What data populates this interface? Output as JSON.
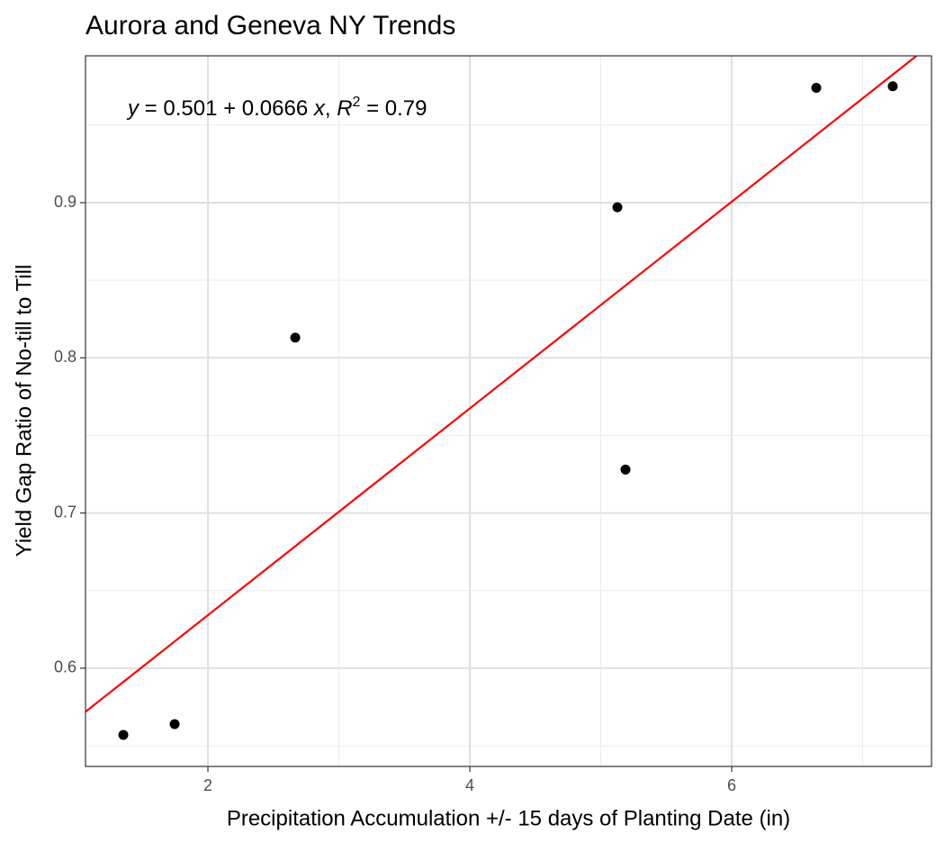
{
  "chart_data": {
    "type": "scatter",
    "title": "Aurora and Geneva NY Trends",
    "x_label": "Precipitation Accumulation +/- 15 days of Planting Date (in)",
    "y_label": "Yield Gap Ratio of No-till to Till",
    "x": [
      1.354,
      1.746,
      2.667,
      5.127,
      5.189,
      6.646,
      7.23
    ],
    "values": [
      0.557,
      0.564,
      0.813,
      0.897,
      0.728,
      0.974,
      0.975
    ],
    "color": "#000000",
    "trendline": {
      "intercept": 0.501,
      "slope": 0.0666,
      "color": "#ff0000"
    },
    "annotation": [
      {
        "text": "y",
        "italic": true
      },
      {
        "text": " = 0.501 + 0.0666 ",
        "italic": false
      },
      {
        "text": "x",
        "italic": true
      },
      {
        "text": ", ",
        "italic": false
      },
      {
        "text": "R",
        "italic": true
      },
      {
        "text": "2",
        "italic": false,
        "superscript": true
      },
      {
        "text": " = 0.79",
        "italic": false
      }
    ],
    "xlim": [
      1.065,
      7.526
    ],
    "ylim": [
      0.5367,
      0.9946
    ],
    "xticks": [
      2,
      4,
      6
    ],
    "yticks": [
      0.6,
      0.7,
      0.8,
      0.9
    ],
    "xminor": [
      3,
      5,
      7
    ],
    "yminor": [
      0.55,
      0.65,
      0.75,
      0.85,
      0.95
    ],
    "grid": true
  }
}
